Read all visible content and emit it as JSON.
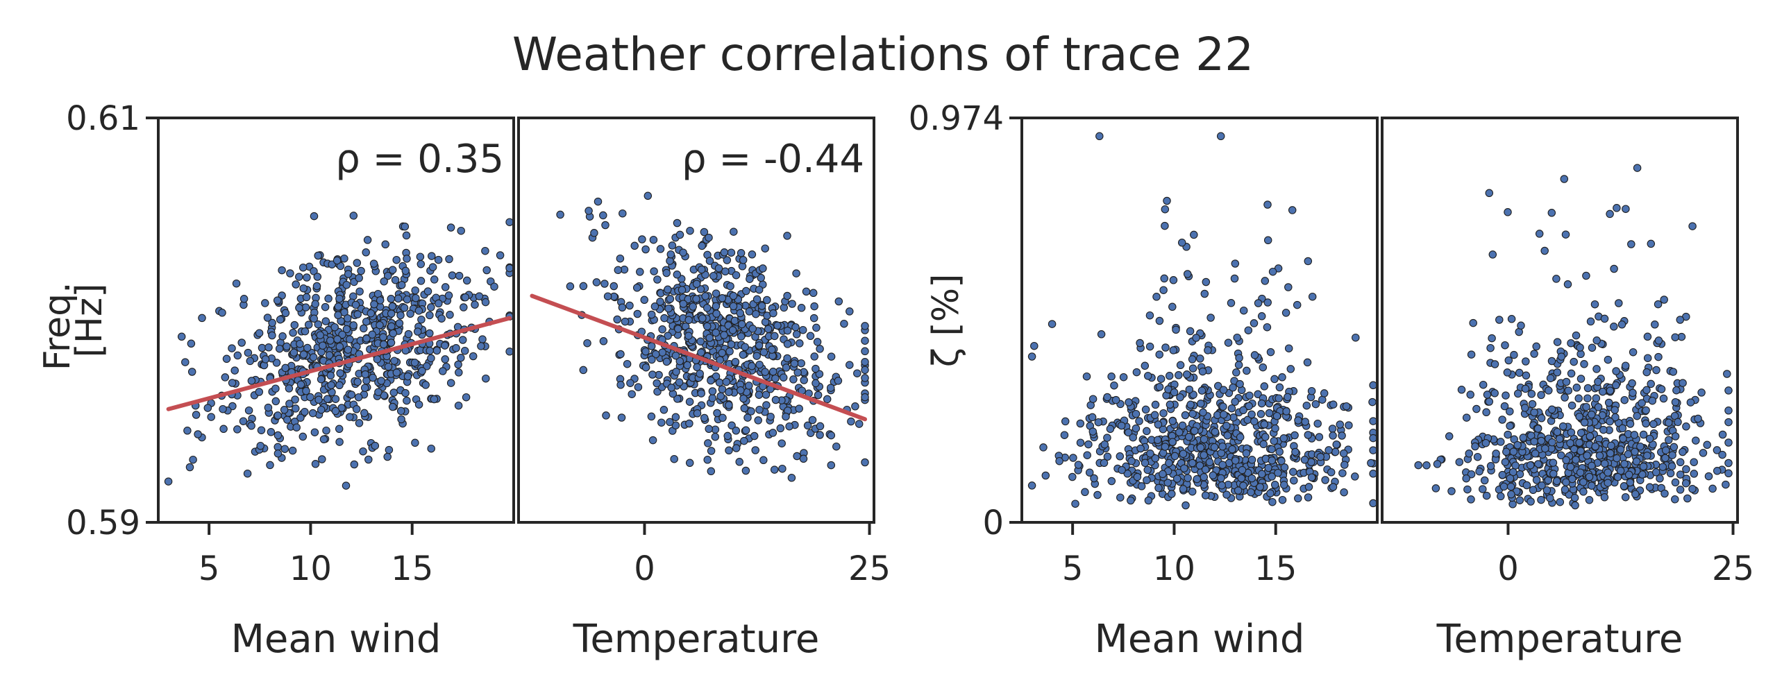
{
  "title": "Weather correlations of trace 22",
  "chart_data": [
    {
      "type": "scatter",
      "xlabel": "Mean wind",
      "ylabel_lines": [
        "Freq.",
        "[Hz]"
      ],
      "xticks": [
        5,
        10,
        15
      ],
      "xlim": [
        2.5,
        20
      ],
      "ylim": [
        0.59,
        0.61
      ],
      "ytick_labels": [
        "0.59",
        "0.61"
      ],
      "correlation_label": "ρ = 0.35",
      "fit_line": {
        "x": [
          3,
          19.8
        ],
        "y": [
          0.5956,
          0.6001
        ]
      },
      "point_cloud": {
        "n": 700,
        "x_mean": 12,
        "x_sd": 3.3,
        "x_range": [
          3,
          19.8
        ],
        "y_mean": 0.5987,
        "y_sd": 0.0023,
        "slope": 0.00027,
        "y_range": [
          0.5912,
          0.6082
        ]
      }
    },
    {
      "type": "scatter",
      "xlabel": "Temperature",
      "xticks": [
        0,
        25
      ],
      "xlim": [
        -14,
        25.5
      ],
      "ylim": [
        0.59,
        0.61
      ],
      "correlation_label": "ρ = -0.44",
      "fit_line": {
        "x": [
          -12.5,
          24.5
        ],
        "y": [
          0.6012,
          0.5951
        ]
      },
      "point_cloud": {
        "n": 700,
        "x_mean": 9,
        "x_sd": 6.5,
        "x_range": [
          -12.5,
          24.5
        ],
        "y_mean": 0.5987,
        "y_sd": 0.0025,
        "slope": -0.000165,
        "y_range": [
          0.5912,
          0.6082
        ]
      }
    },
    {
      "type": "scatter",
      "xlabel": "Mean wind",
      "ylabel": "ζ [%]",
      "xticks": [
        5,
        10,
        15
      ],
      "xlim": [
        2.5,
        20
      ],
      "ylim": [
        0,
        0.974
      ],
      "ytick_labels": [
        "0",
        "0.974"
      ],
      "point_cloud": {
        "n": 750,
        "x_mean": 12,
        "x_sd": 3.3,
        "x_range": [
          3,
          19.8
        ],
        "y_median": 0.19,
        "y_skew": 0.55,
        "y_range": [
          0.02,
          0.93
        ]
      }
    },
    {
      "type": "scatter",
      "xlabel": "Temperature",
      "xticks": [
        0,
        25
      ],
      "xlim": [
        -14,
        25.5
      ],
      "ylim": [
        0,
        0.974
      ],
      "point_cloud": {
        "n": 750,
        "x_mean": 9,
        "x_sd": 6.5,
        "x_range": [
          -12.5,
          24.5
        ],
        "y_median": 0.19,
        "y_skew": 0.55,
        "y_range": [
          0.02,
          0.93
        ]
      }
    }
  ],
  "colors": {
    "points": "#4c72b0",
    "point_edge": "#1f1f1f",
    "fit_line": "#c44e52",
    "axes": "#262626",
    "text": "#262626"
  }
}
